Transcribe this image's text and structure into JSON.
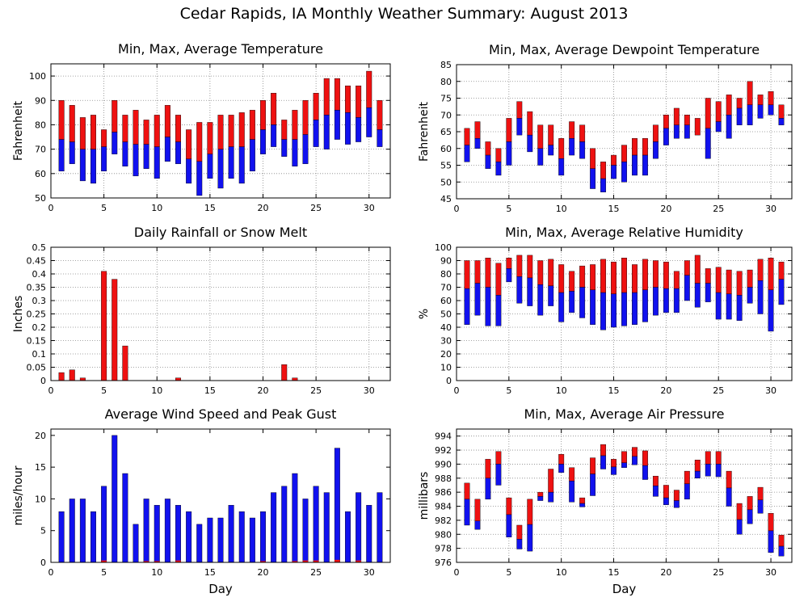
{
  "suptitle": "Cedar Rapids, IA Monthly Weather Summary: August 2013",
  "colors": {
    "red": "#ee1111",
    "blue": "#1111ee",
    "frame": "#000000",
    "grid": "#888888"
  },
  "chart_data": [
    {
      "id": "temp",
      "type": "bar",
      "title": "Min, Max, Average Temperature",
      "ylabel": "Fahrenheit",
      "xlabel": "",
      "xlim": [
        0,
        32
      ],
      "ylim": [
        50,
        105
      ],
      "yticks": [
        50,
        60,
        70,
        80,
        90,
        100
      ],
      "xticks": [
        0,
        5,
        10,
        15,
        20,
        25,
        30
      ],
      "grid": true,
      "days": [
        1,
        2,
        3,
        4,
        5,
        6,
        7,
        8,
        9,
        10,
        11,
        12,
        13,
        14,
        15,
        16,
        17,
        18,
        19,
        20,
        21,
        22,
        23,
        24,
        25,
        26,
        27,
        28,
        29,
        30,
        31
      ],
      "min": [
        61,
        64,
        57,
        56,
        61,
        68,
        63,
        59,
        62,
        58,
        65,
        64,
        56,
        51,
        58,
        54,
        58,
        56,
        61,
        68,
        71,
        67,
        63,
        64,
        71,
        70,
        74,
        72,
        73,
        75,
        71
      ],
      "avg": [
        74,
        73,
        70,
        70,
        71,
        77,
        73,
        72,
        72,
        71,
        75,
        73,
        66,
        65,
        68,
        70,
        71,
        71,
        74,
        78,
        80,
        74,
        74,
        76,
        82,
        84,
        86,
        85,
        83,
        87,
        78
      ],
      "max": [
        90,
        88,
        83,
        84,
        78,
        90,
        84,
        86,
        82,
        84,
        88,
        84,
        78,
        81,
        81,
        84,
        84,
        85,
        86,
        90,
        93,
        82,
        86,
        90,
        93,
        99,
        99,
        96,
        96,
        102,
        90
      ]
    },
    {
      "id": "dew",
      "type": "bar",
      "title": "Min, Max, Average Dewpoint Temperature",
      "ylabel": "Fahrenheit",
      "xlabel": "",
      "xlim": [
        0,
        32
      ],
      "ylim": [
        45,
        85
      ],
      "yticks": [
        45,
        50,
        55,
        60,
        65,
        70,
        75,
        80,
        85
      ],
      "xticks": [
        0,
        5,
        10,
        15,
        20,
        25,
        30
      ],
      "grid": true,
      "days": [
        1,
        2,
        3,
        4,
        5,
        6,
        7,
        8,
        9,
        10,
        11,
        12,
        13,
        14,
        15,
        16,
        17,
        18,
        19,
        20,
        21,
        22,
        23,
        24,
        25,
        26,
        27,
        28,
        29,
        30,
        31
      ],
      "min": [
        56,
        60,
        54,
        52,
        55,
        64,
        59,
        55,
        58,
        52,
        58,
        57,
        48,
        47,
        51,
        50,
        52,
        52,
        57,
        61,
        63,
        63,
        65,
        57,
        65,
        63,
        67,
        67,
        69,
        70,
        67
      ],
      "avg": [
        61,
        63,
        58,
        56,
        62,
        69,
        64,
        60,
        61,
        57,
        63,
        62,
        54,
        51,
        55,
        56,
        58,
        58,
        62,
        66,
        67,
        67,
        64,
        66,
        68,
        70,
        72,
        73,
        73,
        73,
        69
      ],
      "max": [
        66,
        68,
        62,
        60,
        69,
        74,
        71,
        67,
        67,
        63,
        68,
        67,
        60,
        56,
        58,
        61,
        63,
        63,
        67,
        70,
        72,
        70,
        69,
        75,
        74,
        76,
        75,
        80,
        76,
        77,
        73
      ]
    },
    {
      "id": "rain",
      "type": "bar",
      "title": "Daily Rainfall or Snow Melt",
      "ylabel": "Inches",
      "xlabel": "",
      "xlim": [
        0,
        32
      ],
      "ylim": [
        0,
        0.5
      ],
      "yticks": [
        0,
        0.05,
        0.1,
        0.15,
        0.2,
        0.25,
        0.3,
        0.35,
        0.4,
        0.45,
        0.5
      ],
      "ytick_labels": [
        "0",
        "0.05",
        "0.1",
        "0.15",
        "0.2",
        "0.25",
        "0.3",
        "0.35",
        "0.4",
        "0.45",
        "0.5"
      ],
      "xticks": [
        0,
        5,
        10,
        15,
        20,
        25,
        30
      ],
      "grid": true,
      "days": [
        1,
        2,
        3,
        4,
        5,
        6,
        7,
        8,
        9,
        10,
        11,
        12,
        13,
        14,
        15,
        16,
        17,
        18,
        19,
        20,
        21,
        22,
        23,
        24,
        25,
        26,
        27,
        28,
        29,
        30,
        31
      ],
      "values": [
        0.03,
        0.04,
        0.01,
        0,
        0.41,
        0.38,
        0.13,
        0,
        0,
        0,
        0,
        0.01,
        0,
        0,
        0,
        0,
        0,
        0,
        0,
        0,
        0,
        0.06,
        0.01,
        0,
        0,
        0,
        0,
        0,
        0,
        0,
        0
      ]
    },
    {
      "id": "rh",
      "type": "bar",
      "title": "Min, Max, Average Relative Humidity",
      "ylabel": "%",
      "xlabel": "",
      "xlim": [
        0,
        32
      ],
      "ylim": [
        0,
        100
      ],
      "yticks": [
        0,
        10,
        20,
        30,
        40,
        50,
        60,
        70,
        80,
        90,
        100
      ],
      "xticks": [
        0,
        5,
        10,
        15,
        20,
        25,
        30
      ],
      "grid": true,
      "days": [
        1,
        2,
        3,
        4,
        5,
        6,
        7,
        8,
        9,
        10,
        11,
        12,
        13,
        14,
        15,
        16,
        17,
        18,
        19,
        20,
        21,
        22,
        23,
        24,
        25,
        26,
        27,
        28,
        29,
        30,
        31
      ],
      "min": [
        42,
        49,
        41,
        41,
        74,
        58,
        56,
        49,
        56,
        44,
        51,
        47,
        42,
        38,
        40,
        41,
        42,
        44,
        49,
        51,
        51,
        60,
        55,
        59,
        46,
        46,
        45,
        58,
        50,
        37,
        57
      ],
      "avg": [
        69,
        73,
        70,
        64,
        84,
        78,
        77,
        72,
        71,
        66,
        67,
        70,
        68,
        66,
        65,
        66,
        66,
        68,
        70,
        69,
        69,
        79,
        73,
        73,
        66,
        65,
        64,
        70,
        75,
        68,
        76
      ],
      "max": [
        90,
        90,
        92,
        88,
        92,
        94,
        94,
        90,
        91,
        87,
        82,
        86,
        87,
        91,
        89,
        92,
        87,
        91,
        90,
        89,
        82,
        90,
        94,
        84,
        85,
        83,
        82,
        83,
        91,
        92,
        89
      ]
    },
    {
      "id": "wind",
      "type": "bar",
      "title": "Average Wind Speed and Peak Gust",
      "ylabel": "miles/hour",
      "xlabel": "Day",
      "xlim": [
        0,
        32
      ],
      "ylim": [
        0,
        21
      ],
      "yticks": [
        0,
        5,
        10,
        15,
        20
      ],
      "xticks": [
        0,
        5,
        10,
        15,
        20,
        25,
        30
      ],
      "grid": false,
      "days": [
        1,
        2,
        3,
        4,
        5,
        6,
        7,
        8,
        9,
        10,
        11,
        12,
        13,
        14,
        15,
        16,
        17,
        18,
        19,
        20,
        21,
        22,
        23,
        24,
        25,
        26,
        27,
        28,
        29,
        30,
        31
      ],
      "avg_speed": [
        8,
        10,
        10,
        8,
        12,
        20,
        14,
        6,
        10,
        9,
        10,
        9,
        8,
        6,
        7,
        7,
        9,
        8,
        7,
        8,
        11,
        12,
        14,
        10,
        12,
        11,
        18,
        8,
        11,
        9,
        11
      ],
      "peak_gust": [
        0,
        0,
        0,
        0,
        0.3,
        0,
        0,
        0,
        0.2,
        0.2,
        0,
        0.3,
        0,
        0,
        0,
        0,
        0,
        0,
        0,
        0.2,
        0,
        0,
        0.2,
        0.3,
        0.3,
        0,
        0.4,
        0,
        0.3,
        0,
        0
      ]
    },
    {
      "id": "pres",
      "type": "bar",
      "title": "Min, Max, Average Air Pressure",
      "ylabel": "millibars",
      "xlabel": "Day",
      "xlim": [
        0,
        32
      ],
      "ylim": [
        976,
        995
      ],
      "yticks": [
        976,
        978,
        980,
        982,
        984,
        986,
        988,
        990,
        992,
        994
      ],
      "xticks": [
        0,
        5,
        10,
        15,
        20,
        25,
        30
      ],
      "grid": true,
      "days": [
        1,
        2,
        3,
        4,
        5,
        6,
        7,
        8,
        9,
        10,
        11,
        12,
        13,
        14,
        15,
        16,
        17,
        18,
        19,
        20,
        21,
        22,
        23,
        24,
        25,
        26,
        27,
        28,
        29,
        30,
        31
      ],
      "min": [
        981.3,
        980.7,
        985.0,
        987.0,
        979.6,
        977.9,
        977.6,
        984.8,
        984.6,
        988.8,
        984.6,
        983.9,
        985.5,
        989.3,
        988.5,
        989.5,
        989.9,
        987.8,
        985.4,
        984.2,
        983.8,
        985.0,
        988.0,
        988.3,
        988.2,
        984.0,
        980.0,
        981.5,
        983.0,
        977.4,
        976.9
      ],
      "avg": [
        985.0,
        981.9,
        988.0,
        990.0,
        982.8,
        979.3,
        981.4,
        985.4,
        986.0,
        990.0,
        987.6,
        984.4,
        988.6,
        991.2,
        989.6,
        990.2,
        991.1,
        989.8,
        986.9,
        985.2,
        984.8,
        987.2,
        989.0,
        990.0,
        990.0,
        986.6,
        982.1,
        983.5,
        984.9,
        980.5,
        978.3
      ],
      "max": [
        987.3,
        985.0,
        990.7,
        991.8,
        985.2,
        981.3,
        985.0,
        986.0,
        989.3,
        991.4,
        989.5,
        985.2,
        990.9,
        992.8,
        990.7,
        991.8,
        992.4,
        991.9,
        988.3,
        987.0,
        986.3,
        989.0,
        990.6,
        991.8,
        991.8,
        989.0,
        984.4,
        985.4,
        986.7,
        983.0,
        979.9
      ]
    }
  ]
}
